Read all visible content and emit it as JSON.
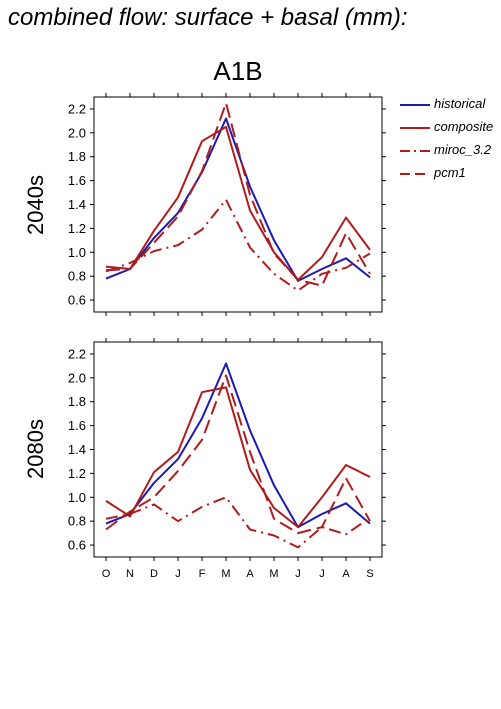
{
  "header": {
    "title": "combined flow: surface + basal (mm):",
    "scenario": "A1B"
  },
  "legend": [
    {
      "name": "historical",
      "color": "#1a1ab4",
      "dash": "solid"
    },
    {
      "name": "composite",
      "color": "#b01c1c",
      "dash": "solid"
    },
    {
      "name": "miroc_3.2",
      "color": "#b01c1c",
      "dash": "dashdot"
    },
    {
      "name": "pcm1",
      "color": "#b01c1c",
      "dash": "dashed"
    }
  ],
  "chart_data": [
    {
      "type": "line",
      "title": "2040s",
      "xlabel": "",
      "ylabel": "2040s",
      "categories": [
        "O",
        "N",
        "D",
        "J",
        "F",
        "M",
        "A",
        "M",
        "J",
        "J",
        "A",
        "S"
      ],
      "ylim": [
        0.5,
        2.3
      ],
      "yticks": [
        "0.6",
        "0.8",
        "1.0",
        "1.2",
        "1.4",
        "1.6",
        "1.8",
        "2.0",
        "2.2"
      ],
      "show_xtick_labels": false,
      "series": [
        {
          "name": "historical",
          "color": "#1a1ab4",
          "dash": "solid",
          "values": [
            0.78,
            0.86,
            1.12,
            1.33,
            1.67,
            2.12,
            1.55,
            1.1,
            0.76,
            0.86,
            0.95,
            0.79
          ]
        },
        {
          "name": "composite",
          "color": "#b01c1c",
          "dash": "solid",
          "values": [
            0.88,
            0.86,
            1.18,
            1.46,
            1.93,
            2.05,
            1.35,
            1.0,
            0.77,
            0.96,
            1.29,
            1.02
          ]
        },
        {
          "name": "miroc_3.2",
          "color": "#b01c1c",
          "dash": "dashdot",
          "values": [
            0.84,
            0.91,
            1.01,
            1.06,
            1.19,
            1.44,
            1.04,
            0.82,
            0.68,
            0.82,
            0.87,
            0.99
          ]
        },
        {
          "name": "pcm1",
          "color": "#b01c1c",
          "dash": "dashed",
          "values": [
            0.85,
            0.86,
            1.08,
            1.3,
            1.68,
            2.25,
            1.48,
            0.99,
            0.77,
            0.72,
            1.16,
            0.82
          ]
        }
      ]
    },
    {
      "type": "line",
      "title": "2080s",
      "xlabel": "",
      "ylabel": "2080s",
      "categories": [
        "O",
        "N",
        "D",
        "J",
        "F",
        "M",
        "A",
        "M",
        "J",
        "J",
        "A",
        "S"
      ],
      "ylim": [
        0.5,
        2.3
      ],
      "yticks": [
        "0.6",
        "0.8",
        "1.0",
        "1.2",
        "1.4",
        "1.6",
        "1.8",
        "2.0",
        "2.2"
      ],
      "show_xtick_labels": true,
      "series": [
        {
          "name": "historical",
          "color": "#1a1ab4",
          "dash": "solid",
          "values": [
            0.78,
            0.86,
            1.12,
            1.32,
            1.66,
            2.12,
            1.56,
            1.1,
            0.75,
            0.86,
            0.95,
            0.78
          ]
        },
        {
          "name": "composite",
          "color": "#b01c1c",
          "dash": "solid",
          "values": [
            0.97,
            0.84,
            1.21,
            1.38,
            1.88,
            1.92,
            1.23,
            0.91,
            0.75,
            1.0,
            1.27,
            1.17
          ]
        },
        {
          "name": "miroc_3.2",
          "color": "#b01c1c",
          "dash": "dashdot",
          "values": [
            0.82,
            0.86,
            0.94,
            0.8,
            0.92,
            1.0,
            0.73,
            0.68,
            0.58,
            0.75,
            0.69,
            0.83
          ]
        },
        {
          "name": "pcm1",
          "color": "#b01c1c",
          "dash": "dashed",
          "values": [
            0.73,
            0.88,
            1.0,
            1.22,
            1.48,
            2.02,
            1.38,
            0.82,
            0.7,
            0.75,
            1.16,
            0.8
          ]
        }
      ]
    }
  ]
}
